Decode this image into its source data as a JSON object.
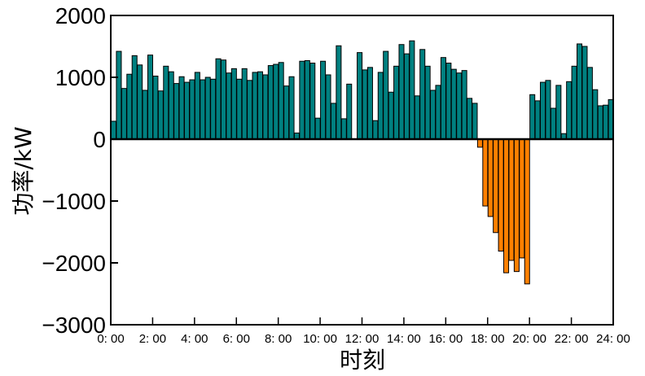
{
  "chart_data": {
    "type": "bar",
    "title": "",
    "xlabel": "时刻",
    "ylabel": "功率/kW",
    "ylim": [
      -3000,
      2000
    ],
    "yticks": [
      "2000",
      "1000",
      "0",
      "−1000",
      "−2000",
      "−3000"
    ],
    "ytick_values": [
      2000,
      1000,
      0,
      -1000,
      -2000,
      -3000
    ],
    "xticks": [
      "0: 00",
      "2: 00",
      "4: 00",
      "6: 00",
      "8: 00",
      "10: 00",
      "12: 00",
      "14: 00",
      "16: 00",
      "18: 00",
      "20: 00",
      "22: 00",
      "24: 00"
    ],
    "xtick_hours": [
      0,
      2,
      4,
      6,
      8,
      10,
      12,
      14,
      16,
      18,
      20,
      22,
      24
    ],
    "interval_minutes": 15,
    "grid": false,
    "colors": {
      "positive": "#008080",
      "negative": "#FF8000",
      "edge": "#000000"
    },
    "values": [
      290,
      1420,
      820,
      1050,
      1350,
      1200,
      790,
      1360,
      1020,
      780,
      1180,
      1090,
      900,
      1010,
      920,
      960,
      1080,
      960,
      1000,
      970,
      1300,
      1280,
      1070,
      1140,
      970,
      1140,
      950,
      1080,
      1090,
      1040,
      1190,
      1210,
      1240,
      860,
      1010,
      100,
      1260,
      1270,
      1230,
      340,
      1260,
      1040,
      580,
      1510,
      330,
      890,
      0,
      1400,
      1120,
      1160,
      300,
      1080,
      1420,
      760,
      1180,
      1530,
      1380,
      1590,
      700,
      1450,
      1180,
      790,
      870,
      1320,
      1230,
      1130,
      1070,
      1110,
      660,
      580,
      -130,
      -1080,
      -1250,
      -1510,
      -1810,
      -2160,
      -1960,
      -2140,
      -1920,
      -2340,
      720,
      620,
      920,
      950,
      500,
      870,
      90,
      930,
      1180,
      1540,
      1500,
      1160,
      800,
      540,
      550,
      640
    ]
  }
}
